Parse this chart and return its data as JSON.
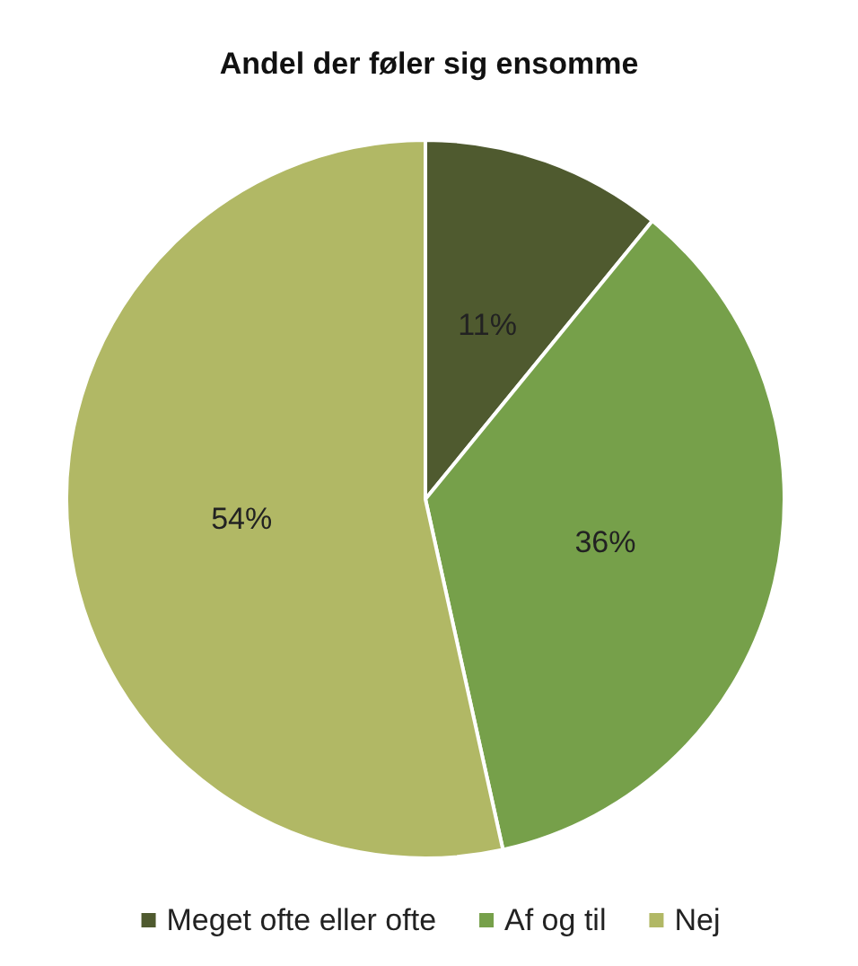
{
  "chart_data": {
    "type": "pie",
    "title": "Andel der føler sig ensomme",
    "categories": [
      "Meget ofte eller ofte",
      "Af og til",
      "Nej"
    ],
    "values": [
      11,
      36,
      54
    ],
    "colors": [
      "#4f5a2f",
      "#76a04a",
      "#b1b865"
    ],
    "value_labels": [
      "11%",
      "36%",
      "54%"
    ],
    "legend": "bottom"
  }
}
